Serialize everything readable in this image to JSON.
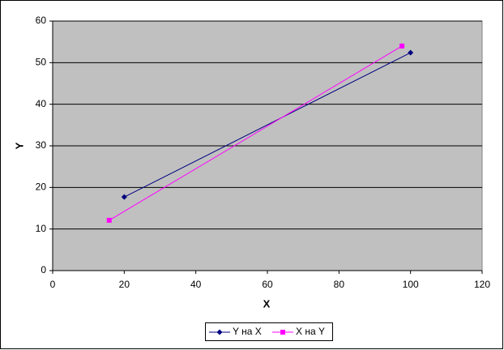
{
  "chart_data": {
    "type": "scatter-line",
    "x_label": "X",
    "y_label": "Y",
    "xlim": [
      0,
      120
    ],
    "xticks": [
      0,
      20,
      40,
      60,
      80,
      100,
      120
    ],
    "ylim": [
      0,
      60
    ],
    "yticks": [
      0,
      10,
      20,
      30,
      40,
      50,
      60
    ],
    "grid": true,
    "legend": "bottom",
    "series": [
      {
        "name": "Y на X",
        "color": "#000080",
        "marker": "diamond",
        "x": [
          20,
          100
        ],
        "values": [
          17.7,
          52.4
        ]
      },
      {
        "name": "X на Y",
        "color": "#ff00ff",
        "marker": "square",
        "x": [
          15.8,
          97.6
        ],
        "values": [
          12.1,
          54.0
        ]
      }
    ]
  }
}
